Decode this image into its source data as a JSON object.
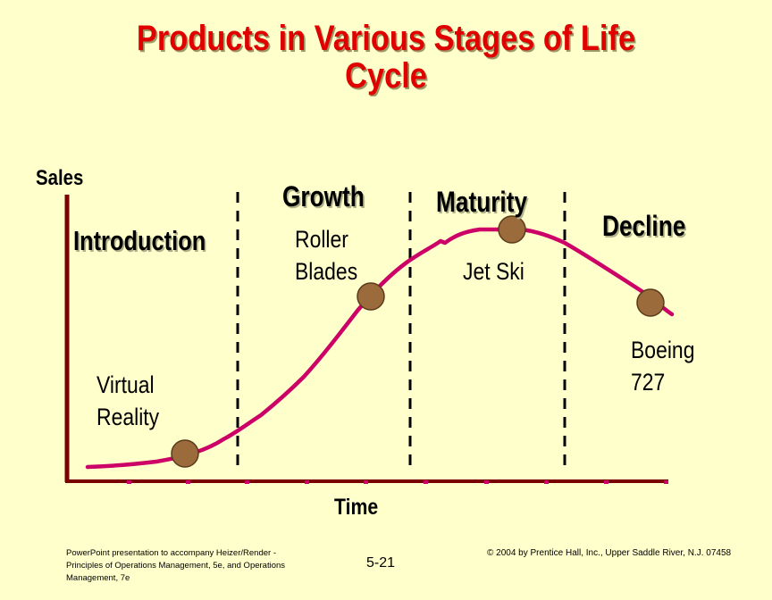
{
  "title": {
    "line1": "Products in Various Stages of Life",
    "line2": "Cycle"
  },
  "axes": {
    "ylabel": "Sales",
    "xlabel": "Time"
  },
  "stages": [
    {
      "label": "Introduction"
    },
    {
      "label": "Growth"
    },
    {
      "label": "Maturity"
    },
    {
      "label": "Decline"
    }
  ],
  "products": [
    {
      "line1": "Virtual",
      "line2": "Reality",
      "stage": "Introduction"
    },
    {
      "line1": "Roller",
      "line2": "Blades",
      "stage": "Growth"
    },
    {
      "line1": "Jet Ski",
      "line2": "",
      "stage": "Maturity"
    },
    {
      "line1": "Boeing",
      "line2": "727",
      "stage": "Decline"
    }
  ],
  "footer": {
    "left": "PowerPoint presentation to accompany Heizer/Render - Principles of Operations Management, 5e, and Operations Management, 7e",
    "page": "5-21",
    "right": "© 2004 by Prentice Hall, Inc., Upper Saddle River, N.J. 07458"
  },
  "colors": {
    "background": "#FFFFCC",
    "title": "#E00000",
    "curve": "#CC0066",
    "axis": "#7A0000",
    "marker": "#9C6B3C"
  }
}
